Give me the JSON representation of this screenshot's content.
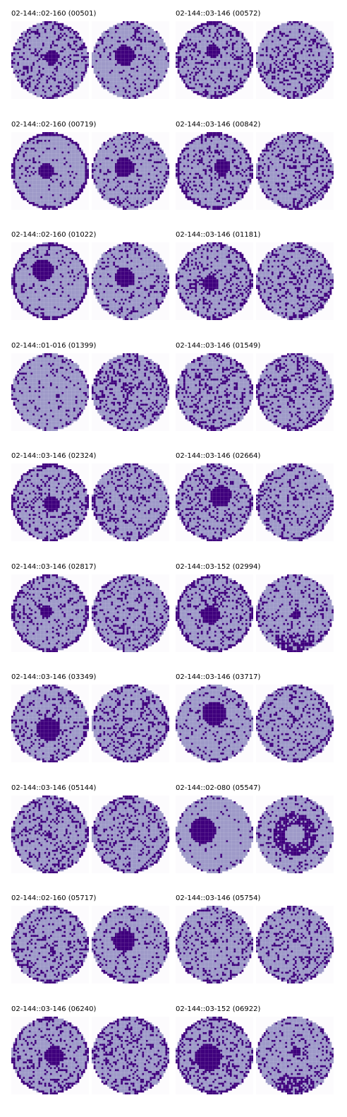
{
  "colors": {
    "background": "#fcfbfd",
    "fill": "#9e9ac8",
    "defect": "#3f007d"
  },
  "panels": [
    {
      "title": "02-144::02-160 (00501)"
    },
    {
      "title": "02-144::03-146 (00572)"
    },
    {
      "title": "02-144::02-160 (00719)"
    },
    {
      "title": "02-144::03-146 (00842)"
    },
    {
      "title": "02-144::02-160 (01022)"
    },
    {
      "title": "02-144::03-146 (01181)"
    },
    {
      "title": "02-144::01-016 (01399)"
    },
    {
      "title": "02-144::03-146 (01549)"
    },
    {
      "title": "02-144::03-146 (02324)"
    },
    {
      "title": "02-144::03-146 (02664)"
    },
    {
      "title": "02-144::03-146 (02817)"
    },
    {
      "title": "02-144::03-152 (02994)"
    },
    {
      "title": "02-144::03-146 (03349)"
    },
    {
      "title": "02-144::03-146 (03717)"
    },
    {
      "title": "02-144::03-146 (05144)"
    },
    {
      "title": "02-144::02-080 (05547)"
    },
    {
      "title": "02-144::02-160 (05717)"
    },
    {
      "title": "02-144::03-146 (05754)"
    },
    {
      "title": "02-144::03-146 (06240)"
    },
    {
      "title": "02-144::03-152 (06922)"
    }
  ]
}
